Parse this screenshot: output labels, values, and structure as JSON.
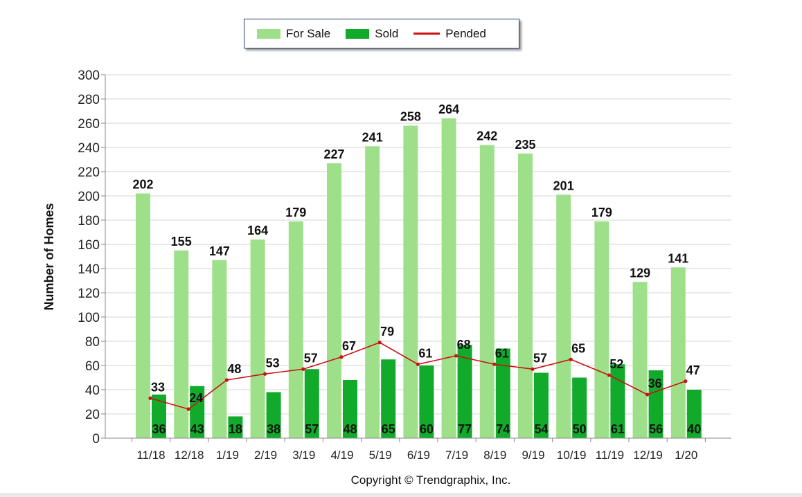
{
  "chart_data": {
    "type": "bar",
    "ylabel": "Number of Homes",
    "xlabel": "",
    "ylim": [
      0,
      300
    ],
    "yticks": [
      0,
      20,
      40,
      60,
      80,
      100,
      120,
      140,
      160,
      180,
      200,
      220,
      240,
      260,
      280,
      300
    ],
    "grid": true,
    "legend_position": "top-center",
    "categories": [
      "11/18",
      "12/18",
      "1/19",
      "2/19",
      "3/19",
      "4/19",
      "5/19",
      "6/19",
      "7/19",
      "8/19",
      "9/19",
      "10/19",
      "11/19",
      "12/19",
      "1/20"
    ],
    "series": [
      {
        "name": "For Sale",
        "type": "bar",
        "color": "#9ee08a",
        "values": [
          202,
          155,
          147,
          164,
          179,
          227,
          241,
          258,
          264,
          242,
          235,
          201,
          179,
          129,
          141
        ]
      },
      {
        "name": "Sold",
        "type": "bar",
        "color": "#11aa2a",
        "values": [
          36,
          43,
          18,
          38,
          57,
          48,
          65,
          60,
          77,
          74,
          54,
          50,
          61,
          56,
          40
        ]
      },
      {
        "name": "Pended",
        "type": "line",
        "color": "#cc1111",
        "values": [
          33,
          24,
          48,
          53,
          57,
          67,
          79,
          61,
          68,
          61,
          57,
          65,
          52,
          36,
          47
        ]
      }
    ]
  },
  "footer": {
    "copyright": "Copyright © Trendgraphix, Inc."
  }
}
